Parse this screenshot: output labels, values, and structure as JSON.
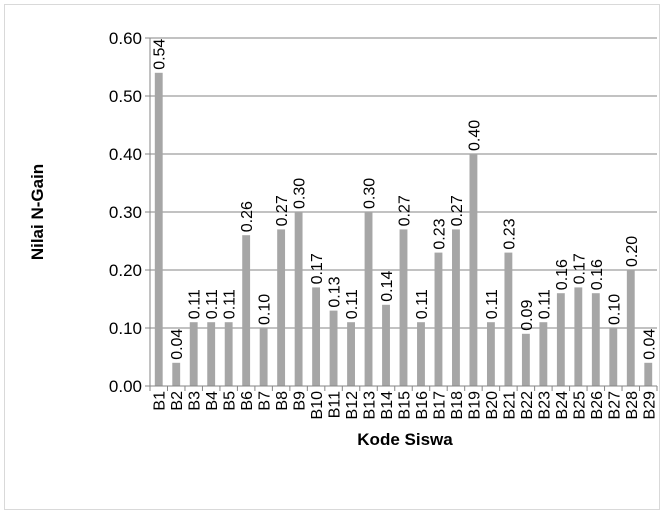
{
  "chart_data": {
    "type": "bar",
    "title": "",
    "xlabel": "Kode Siswa",
    "ylabel": "Nilai N-Gain",
    "ylim": [
      0,
      0.6
    ],
    "yticks": [
      "0.00",
      "0.10",
      "0.20",
      "0.30",
      "0.40",
      "0.50",
      "0.60"
    ],
    "grid": true,
    "legend": "none",
    "bar_color": "#a6a6a6",
    "categories": [
      "B1",
      "B2",
      "B3",
      "B4",
      "B5",
      "B6",
      "B7",
      "B8",
      "B9",
      "B10",
      "B11",
      "B12",
      "B13",
      "B14",
      "B15",
      "B16",
      "B17",
      "B18",
      "B19",
      "B20",
      "B21",
      "B22",
      "B23",
      "B24",
      "B25",
      "B26",
      "B27",
      "B28",
      "B29"
    ],
    "values": [
      0.54,
      0.04,
      0.11,
      0.11,
      0.11,
      0.26,
      0.1,
      0.27,
      0.3,
      0.17,
      0.13,
      0.11,
      0.3,
      0.14,
      0.27,
      0.11,
      0.23,
      0.27,
      0.4,
      0.11,
      0.23,
      0.09,
      0.11,
      0.16,
      0.17,
      0.16,
      0.1,
      0.2,
      0.04
    ],
    "labels": [
      "0.54",
      "0.04",
      "0.11",
      "0.11",
      "0.11",
      "0.26",
      "0.10",
      "0.27",
      "0.30",
      "0.17",
      "0.13",
      "0.11",
      "0.30",
      "0.14",
      "0.27",
      "0.11",
      "0.23",
      "0.27",
      "0.40",
      "0.11",
      "0.23",
      "0.09",
      "0.11",
      "0.16",
      "0.17",
      "0.16",
      "0.10",
      "0.20",
      "0.04"
    ]
  }
}
